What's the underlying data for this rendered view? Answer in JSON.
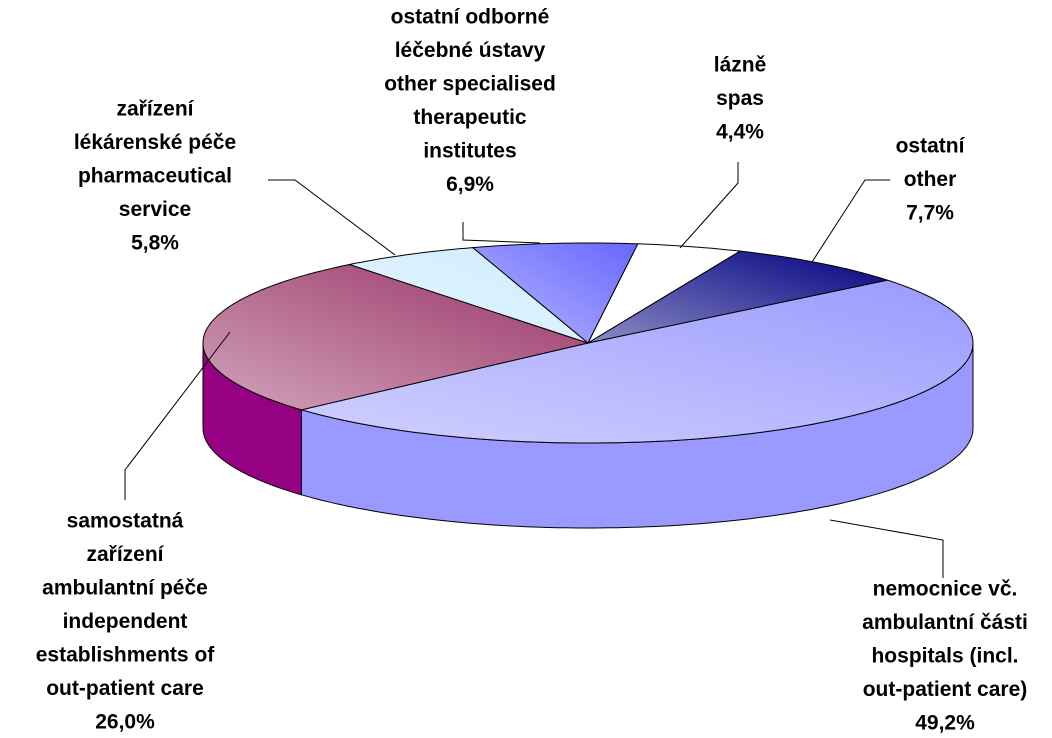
{
  "chart_data": {
    "type": "pie",
    "categories": [
      [
        "nemocnice vč.",
        "ambulantní části",
        "hospitals (incl.",
        "out-patient care)"
      ],
      [
        "samostatná",
        "zařízení",
        "ambulantní péče",
        "independent",
        "establishments of",
        "out-patient care"
      ],
      [
        "zařízení",
        "lékárenské péče",
        "pharmaceutical",
        "service"
      ],
      [
        "ostatní odborné",
        "léčebné ústavy",
        "other specialised",
        "therapeutic",
        "institutes"
      ],
      [
        "lázně",
        "spas"
      ],
      [
        "ostatní",
        "other"
      ]
    ],
    "values": [
      49.2,
      26.0,
      5.8,
      6.9,
      4.4,
      7.7
    ],
    "value_labels": [
      "49,2%",
      "26,0%",
      "5,8%",
      "6,9%",
      "4,4%",
      "7,7%"
    ],
    "colors": [
      "#9999ff",
      "#993366",
      "#ccecff",
      "#6666ff",
      "#ffffff",
      "#000080"
    ]
  }
}
